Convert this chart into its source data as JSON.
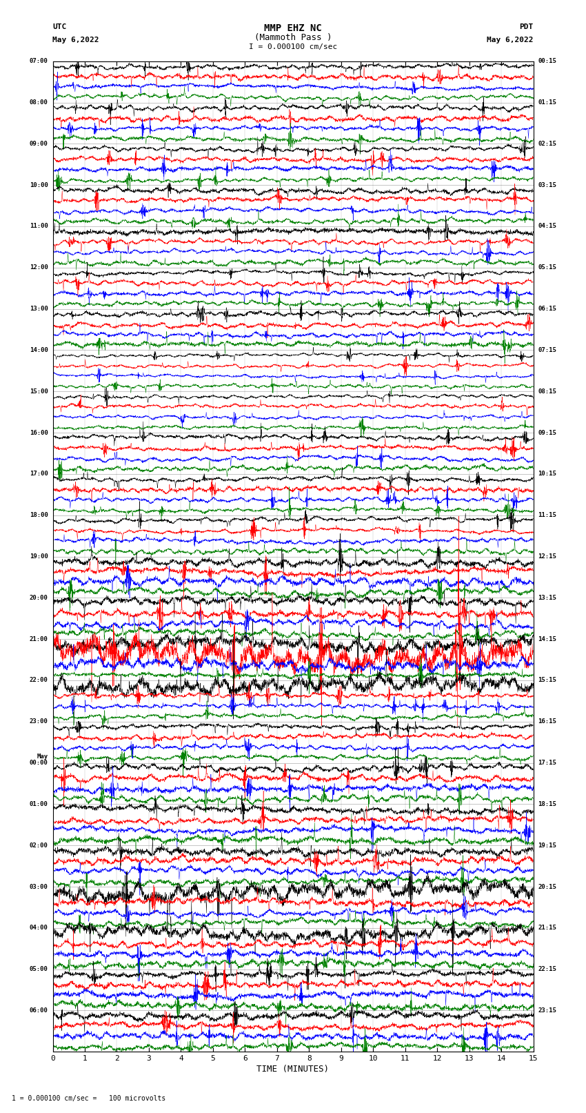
{
  "title_line1": "MMP EHZ NC",
  "title_line2": "(Mammoth Pass )",
  "scale_label": "I = 0.000100 cm/sec",
  "left_header_line1": "UTC",
  "left_header_line2": "May 6,2022",
  "right_header_line1": "PDT",
  "right_header_line2": "May 6,2022",
  "xlabel": "TIME (MINUTES)",
  "footer": "1 = 0.000100 cm/sec =   100 microvolts",
  "utc_labels": [
    "07:00",
    "08:00",
    "09:00",
    "10:00",
    "11:00",
    "12:00",
    "13:00",
    "14:00",
    "15:00",
    "16:00",
    "17:00",
    "18:00",
    "19:00",
    "20:00",
    "21:00",
    "22:00",
    "23:00",
    "May\n00:00",
    "01:00",
    "02:00",
    "03:00",
    "04:00",
    "05:00",
    "06:00"
  ],
  "pdt_labels": [
    "00:15",
    "01:15",
    "02:15",
    "03:15",
    "04:15",
    "05:15",
    "06:15",
    "07:15",
    "08:15",
    "09:15",
    "10:15",
    "11:15",
    "12:15",
    "13:15",
    "14:15",
    "15:15",
    "16:15",
    "17:15",
    "18:15",
    "19:15",
    "20:15",
    "21:15",
    "22:15",
    "23:15"
  ],
  "n_rows": 96,
  "n_hours": 24,
  "colors": [
    "black",
    "red",
    "blue",
    "green"
  ],
  "background": "white",
  "fig_width": 8.5,
  "fig_height": 16.13,
  "dpi": 100,
  "xmin": 0,
  "xmax": 15,
  "noise_seed": 42
}
